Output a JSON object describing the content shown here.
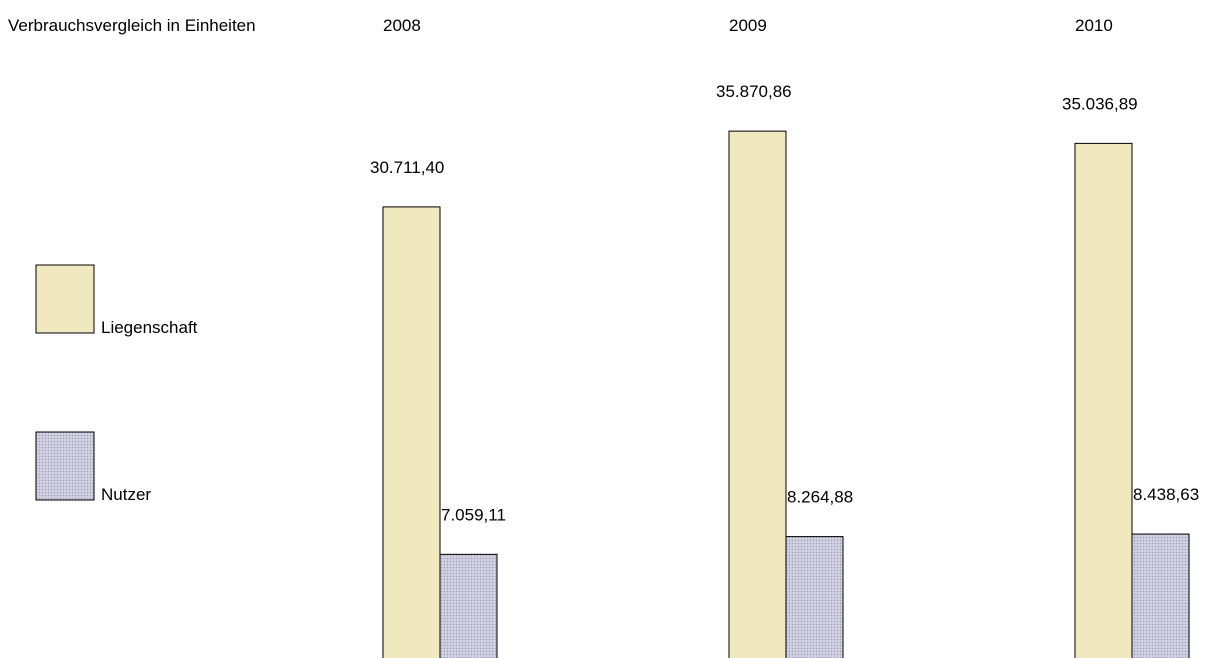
{
  "chart_data": {
    "type": "bar",
    "title": "Verbrauchsvergleich in Einheiten",
    "categories": [
      "2008",
      "2009",
      "2010"
    ],
    "series": [
      {
        "name": "Liegenschaft",
        "values": [
          30711.4,
          35870.86,
          35036.89
        ],
        "labels": [
          "30.711,40",
          "35.870,86",
          "35.036,89"
        ],
        "color": "#f0e9bf"
      },
      {
        "name": "Nutzer",
        "values": [
          7059.11,
          8264.88,
          8438.63
        ],
        "labels": [
          "7.059,11",
          "8.264,88",
          "8.438,63"
        ],
        "color": "#c8c8da"
      }
    ],
    "legend_position": "left",
    "grid": false
  }
}
